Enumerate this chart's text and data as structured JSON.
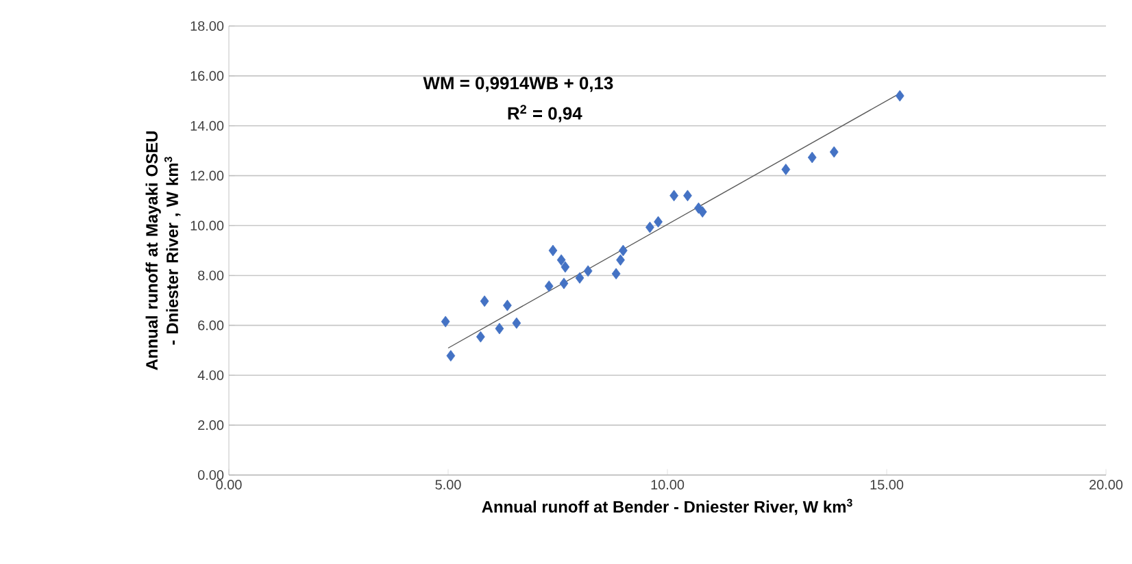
{
  "chart_data": {
    "type": "scatter",
    "xlabel": "Annual runoff at Bender - Dniester River, W km$^{3}$",
    "ylabel": "Annual runoff at Mayaki OSEU - Dniester River , W km$^{3}$",
    "annotations": [
      "WM = 0,9914WB + 0,13",
      "R$^{2}$ = 0,94"
    ],
    "xlim": [
      0,
      20
    ],
    "ylim": [
      0,
      18
    ],
    "xticks": [
      {
        "value": 0,
        "label": "0.00"
      },
      {
        "value": 5,
        "label": "5.00"
      },
      {
        "value": 10,
        "label": "10.00"
      },
      {
        "value": 15,
        "label": "15.00"
      },
      {
        "value": 20,
        "label": "20.00"
      }
    ],
    "yticks": [
      {
        "value": 0,
        "label": "0.00"
      },
      {
        "value": 2,
        "label": "2.00"
      },
      {
        "value": 4,
        "label": "4.00"
      },
      {
        "value": 6,
        "label": "6.00"
      },
      {
        "value": 8,
        "label": "8.00"
      },
      {
        "value": 10,
        "label": "10.00"
      },
      {
        "value": 12,
        "label": "12.00"
      },
      {
        "value": 14,
        "label": "14.00"
      },
      {
        "value": 16,
        "label": "16.00"
      },
      {
        "value": 18,
        "label": "18.00"
      }
    ],
    "grid": "y",
    "marker": "diamond",
    "series": [
      {
        "color": "#4472c4",
        "x": [
          4.94,
          5.06,
          5.74,
          5.83,
          6.17,
          6.35,
          6.56,
          7.3,
          7.39,
          7.58,
          7.67,
          7.64,
          8.0,
          8.19,
          8.83,
          8.93,
          8.99,
          9.6,
          9.79,
          10.15,
          10.46,
          10.71,
          10.8,
          12.7,
          13.3,
          13.8,
          15.3
        ],
        "values": [
          6.15,
          4.78,
          5.54,
          6.97,
          5.87,
          6.8,
          6.09,
          7.57,
          9.0,
          8.62,
          8.34,
          7.68,
          7.9,
          8.18,
          8.07,
          8.62,
          9.0,
          9.93,
          10.15,
          11.2,
          11.2,
          10.7,
          10.55,
          12.25,
          12.73,
          12.95,
          15.2
        ]
      },
      {
        "type": "line",
        "color": "#595959",
        "marker": "none",
        "x": [
          5.0,
          15.3
        ],
        "values": [
          5.09,
          15.3
        ]
      }
    ]
  }
}
